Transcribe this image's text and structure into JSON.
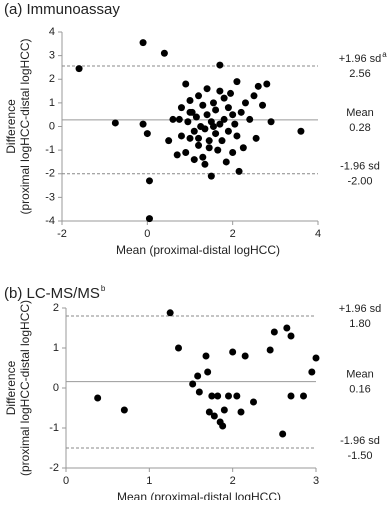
{
  "chart_data": [
    {
      "type": "scatter",
      "title": "(a) Immunoassay",
      "ylabel": [
        "Difference",
        "(proximal logHCC-distal logHCC)"
      ],
      "xlabel": "Mean (proximal-distal logHCC)",
      "xlim": [
        -2,
        4
      ],
      "xticks": [
        -2,
        0,
        2,
        4
      ],
      "ylim": [
        -4,
        4
      ],
      "yticks": [
        -4,
        -3,
        -2,
        -1,
        0,
        1,
        2,
        3,
        4
      ],
      "color": "#000000",
      "x": [
        -1.6,
        -0.1,
        0.4,
        -0.75,
        -0.1,
        0.0,
        0.05,
        0.05,
        0.5,
        0.6,
        0.7,
        0.8,
        0.8,
        0.9,
        0.95,
        1.0,
        1.0,
        1.05,
        1.1,
        1.1,
        1.15,
        1.2,
        1.2,
        1.25,
        1.3,
        1.3,
        1.35,
        1.4,
        1.4,
        1.45,
        1.5,
        1.5,
        1.55,
        1.6,
        1.6,
        1.65,
        1.7,
        1.7,
        1.75,
        1.8,
        1.8,
        1.85,
        1.9,
        1.9,
        1.95,
        2.0,
        2.0,
        2.05,
        2.1,
        2.1,
        2.2,
        2.25,
        2.3,
        2.4,
        2.5,
        2.55,
        2.6,
        2.7,
        2.8,
        2.9,
        3.6,
        1.7,
        1.45,
        1.0,
        0.9,
        1.2,
        2.15,
        1.35,
        0.75,
        1.55
      ],
      "values": [
        2.45,
        3.55,
        3.1,
        0.15,
        0.1,
        -0.3,
        -2.3,
        -3.9,
        -0.6,
        0.3,
        -1.2,
        -0.4,
        0.8,
        -1.1,
        0.2,
        1.1,
        -0.5,
        0.6,
        -0.2,
        -1.4,
        0.4,
        1.3,
        -0.8,
        0.0,
        0.9,
        -1.3,
        -0.1,
        1.6,
        0.5,
        -0.6,
        0.2,
        -2.1,
        1.0,
        -0.3,
        0.7,
        -1.0,
        2.6,
        0.1,
        -0.6,
        1.2,
        0.3,
        -1.5,
        0.8,
        -0.2,
        1.4,
        0.5,
        -1.1,
        0.1,
        1.9,
        -0.4,
        0.6,
        -0.9,
        1.0,
        0.3,
        1.3,
        -0.5,
        1.7,
        0.9,
        1.8,
        0.2,
        -0.2,
        1.5,
        -0.9,
        0.6,
        1.8,
        -0.5,
        -1.9,
        -1.6,
        0.3,
        0.0
      ],
      "ref_lines": [
        {
          "label": "+1.96 sd",
          "label_sup": "a",
          "value": 2.56,
          "value_label": "2.56",
          "style": "dashed"
        },
        {
          "label": "Mean",
          "value": 0.28,
          "value_label": "0.28",
          "style": "solid"
        },
        {
          "label": "-1.96 sd",
          "value": -2.0,
          "value_label": "-2.00",
          "style": "dashed"
        }
      ]
    },
    {
      "type": "scatter",
      "title": "(b) LC-MS/MS",
      "title_sup": "b",
      "ylabel": [
        "Difference",
        "(proximal logHCC-distal logHCC)"
      ],
      "xlabel": "Mean (proximal-distal logHCC)",
      "xlim": [
        0,
        3
      ],
      "xticks": [
        0,
        1,
        2,
        3
      ],
      "ylim": [
        -2,
        2
      ],
      "yticks": [
        -2,
        -1,
        0,
        1,
        2
      ],
      "color": "#000000",
      "x": [
        0.38,
        0.7,
        1.25,
        1.35,
        1.52,
        1.58,
        1.6,
        1.68,
        1.7,
        1.72,
        1.75,
        1.78,
        1.82,
        1.85,
        1.88,
        1.9,
        1.95,
        2.0,
        2.05,
        2.1,
        2.15,
        2.25,
        2.45,
        2.5,
        2.6,
        2.65,
        2.7,
        2.7,
        2.85,
        2.95,
        3.0
      ],
      "values": [
        -0.25,
        -0.55,
        1.88,
        1.0,
        0.1,
        0.3,
        -0.1,
        0.8,
        0.4,
        -0.6,
        -0.2,
        -0.7,
        -0.2,
        -0.85,
        -0.95,
        -0.55,
        -0.2,
        0.9,
        -0.2,
        -0.6,
        0.8,
        -0.35,
        0.95,
        1.4,
        -1.15,
        1.5,
        1.3,
        -0.2,
        -0.2,
        0.4,
        0.75
      ],
      "ref_lines": [
        {
          "label": "+1.96 sd",
          "value": 1.8,
          "value_label": "1.80",
          "style": "dashed"
        },
        {
          "label": "Mean",
          "value": 0.16,
          "value_label": "0.16",
          "style": "solid"
        },
        {
          "label": "-1.96 sd",
          "value": -1.5,
          "value_label": "-1.50",
          "style": "dashed"
        }
      ]
    }
  ]
}
